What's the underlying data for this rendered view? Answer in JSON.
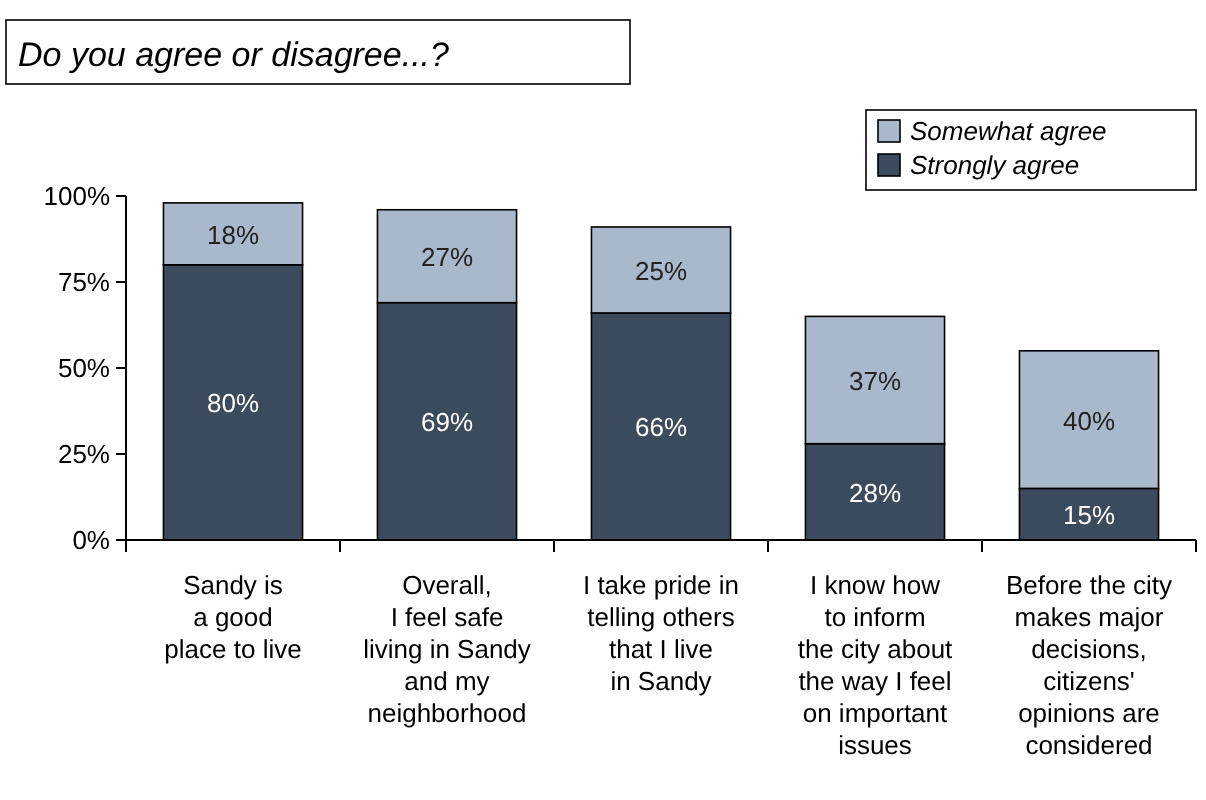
{
  "chart_data": {
    "type": "bar",
    "title": "Do you agree or disagree...?",
    "stacked": true,
    "categories": [
      "Sandy is\na good\nplace to live",
      "Overall,\nI feel safe\nliving in Sandy\nand my\nneighborhood",
      "I take pride in\ntelling others\nthat I live\nin Sandy",
      "I know how\nto inform\nthe city about\nthe way I feel\non important\nissues",
      "Before the city\nmakes major\ndecisions,\ncitizens'\nopinions are\nconsidered"
    ],
    "series": [
      {
        "name": "Strongly agree",
        "color": "#3b4a5c",
        "values": [
          80,
          69,
          66,
          28,
          15
        ],
        "value_labels": [
          "80%",
          "69%",
          "66%",
          "28%",
          "15%"
        ]
      },
      {
        "name": "Somewhat agree",
        "color": "#a9b8cb",
        "values": [
          18,
          27,
          25,
          37,
          40
        ],
        "value_labels": [
          "18%",
          "27%",
          "25%",
          "37%",
          "40%"
        ]
      }
    ],
    "ylim": [
      0,
      100
    ],
    "yticks": [
      {
        "value": 0,
        "label": "0%"
      },
      {
        "value": 25,
        "label": "25%"
      },
      {
        "value": 50,
        "label": "50%"
      },
      {
        "value": 75,
        "label": "75%"
      },
      {
        "value": 100,
        "label": "100%"
      }
    ],
    "legend": "top right"
  }
}
